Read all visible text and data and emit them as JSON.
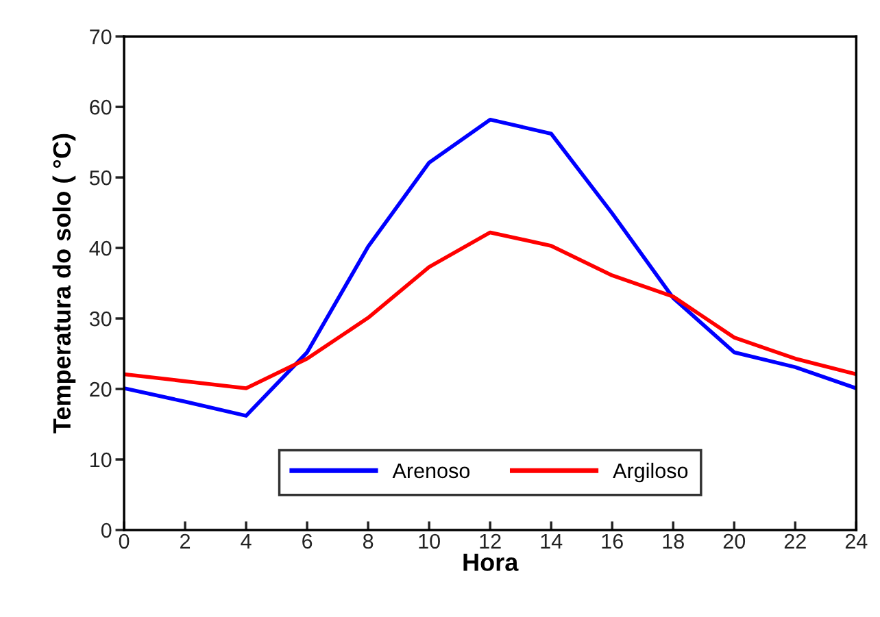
{
  "chart_data": {
    "type": "line",
    "xlabel": "Hora",
    "ylabel": "Temperatura do solo ( °C)",
    "x": [
      0,
      2,
      4,
      6,
      8,
      10,
      12,
      14,
      16,
      18,
      20,
      22,
      24
    ],
    "series": [
      {
        "name": "Arenoso",
        "color": "#0000ff",
        "values": [
          20.1,
          18.2,
          16.2,
          25.2,
          40.2,
          52.1,
          58.2,
          56.2,
          44.9,
          32.9,
          25.2,
          23.1,
          20.1
        ]
      },
      {
        "name": "Argiloso",
        "color": "#ff0000",
        "values": [
          22.1,
          21.1,
          20.1,
          24.3,
          30.1,
          37.3,
          42.2,
          40.3,
          36.1,
          33.1,
          27.3,
          24.3,
          22.1
        ]
      }
    ],
    "xlim": [
      0,
      24
    ],
    "xticks": [
      0,
      2,
      4,
      6,
      8,
      10,
      12,
      14,
      16,
      18,
      20,
      22,
      24
    ],
    "ylim": [
      0,
      70
    ],
    "yticks": [
      0,
      10,
      20,
      30,
      40,
      50,
      60,
      70
    ],
    "grid": false,
    "legend": "bottom",
    "marker": "none",
    "line_style": "solid"
  }
}
